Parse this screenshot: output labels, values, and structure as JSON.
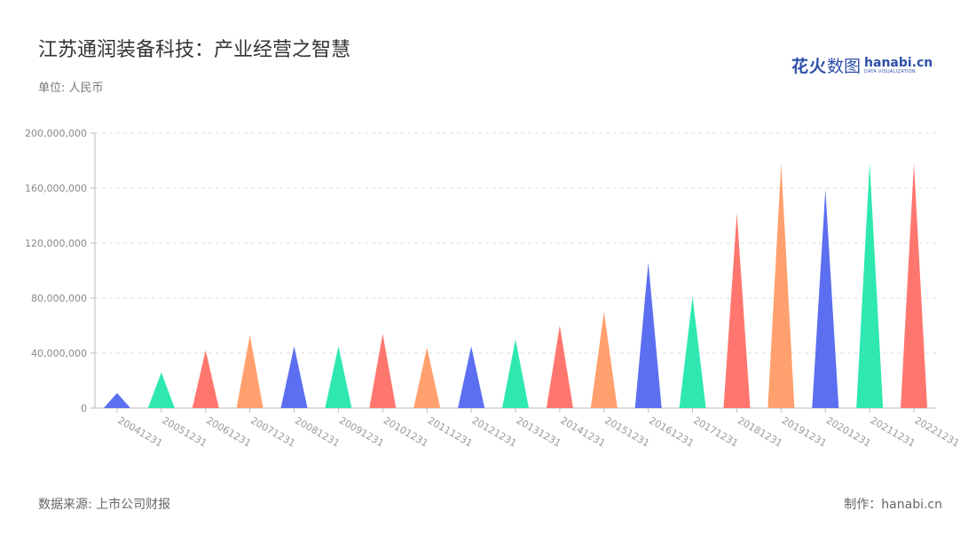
{
  "title": "江苏通润装备科技：产业经营之智慧",
  "unit_label": "单位: 人民币",
  "source_label": "数据来源: 上市公司财报",
  "maker_label": "制作：hanabi.cn",
  "brand": {
    "cn_bold": "花火",
    "cn_light": "数图",
    "en": "hanabi.cn",
    "en_sub": "DATA VISUALIZATION"
  },
  "colors": {
    "series_cycle": [
      "#5b6ff0",
      "#2ee8b0",
      "#ff766e",
      "#ffa06e"
    ],
    "grid": "#dddddd",
    "axis": "#bbbbbb"
  },
  "chart_data": {
    "type": "bar",
    "bar_shape": "triangle",
    "categories": [
      "20041231",
      "20051231",
      "20061231",
      "20071231",
      "20081231",
      "20091231",
      "20101231",
      "20111231",
      "20121231",
      "20131231",
      "20141231",
      "20151231",
      "20161231",
      "20171231",
      "20181231",
      "20191231",
      "20201231",
      "20211231",
      "20221231"
    ],
    "values": [
      11000000,
      26000000,
      42000000,
      53000000,
      45000000,
      45000000,
      54000000,
      44000000,
      45000000,
      50000000,
      60000000,
      70000000,
      106000000,
      81000000,
      142000000,
      178000000,
      159000000,
      178000000,
      178000000
    ],
    "ylim": [
      0,
      200000000
    ],
    "yticks": [
      0,
      40000000,
      80000000,
      120000000,
      160000000,
      200000000
    ],
    "ytick_labels": [
      "0",
      "40,000,000",
      "80,000,000",
      "120,000,000",
      "160,000,000",
      "200,000,000"
    ],
    "grid": true,
    "legend": "none"
  }
}
